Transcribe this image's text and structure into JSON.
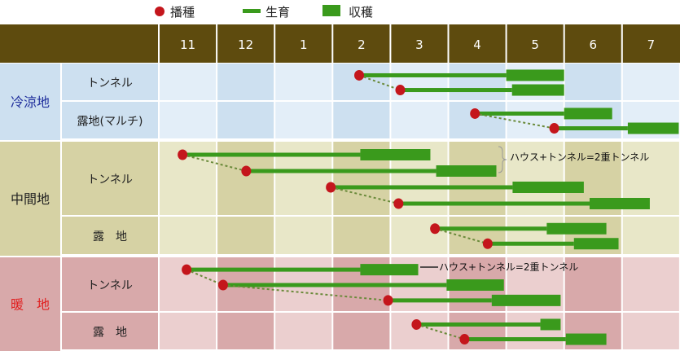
{
  "chart_data": {
    "type": "gantt",
    "legend": {
      "placement": "top-center",
      "items": [
        {
          "label": "播種",
          "shape": "dot"
        },
        {
          "label": "生育",
          "shape": "line"
        },
        {
          "label": "収穫",
          "shape": "block"
        }
      ]
    },
    "months": [
      "11",
      "12",
      "1",
      "2",
      "3",
      "4",
      "5",
      "6",
      "7"
    ],
    "colors": {
      "header": "#5e4b0e",
      "sow": "#c4161c",
      "growth": "#3a9a1c",
      "harvest": "#3a9a1c",
      "cold_light": "#e3eef8",
      "cold_dark": "#cde0f0",
      "cold_label": "#1f2e9c",
      "mid_light": "#e8e7c8",
      "mid_dark": "#d6d2a4",
      "mid_label": "#222222",
      "warm_light": "#ebcfcf",
      "warm_dark": "#d8a9aa",
      "warm_label": "#e02020"
    },
    "regions": [
      {
        "name": "冷涼地",
        "tone": "cold",
        "methods": [
          {
            "name": "トンネル",
            "groups": [
              [
                {
                  "sow": 2.46,
                  "harvest_start": 5.0,
                  "end": 6.0
                },
                {
                  "sow": 3.17,
                  "harvest_start": 5.1,
                  "end": 6.0
                }
              ]
            ]
          },
          {
            "name": "露地(マルチ)",
            "groups": [
              [
                {
                  "sow": 4.46,
                  "harvest_start": 6.0,
                  "end": 6.83
                },
                {
                  "sow": 5.83,
                  "harvest_start": 7.1,
                  "end": 7.98
                }
              ]
            ]
          }
        ]
      },
      {
        "name": "中間地",
        "tone": "mid",
        "methods": [
          {
            "name": "トンネル",
            "groups": [
              [
                {
                  "sow": 11.41,
                  "harvest_start": 2.48,
                  "end": 3.69
                },
                {
                  "sow": 12.51,
                  "harvest_start": 3.79,
                  "end": 4.83
                }
              ],
              [
                {
                  "sow": 1.97,
                  "harvest_start": 5.11,
                  "end": 6.34
                },
                {
                  "sow": 3.14,
                  "harvest_start": 6.44,
                  "end": 7.48
                }
              ]
            ]
          },
          {
            "name": "露　地",
            "groups": [
              [
                {
                  "sow": 3.77,
                  "harvest_start": 5.7,
                  "end": 6.73
                },
                {
                  "sow": 4.68,
                  "harvest_start": 6.17,
                  "end": 6.94
                }
              ]
            ]
          }
        ]
      },
      {
        "name": "暖　地",
        "tone": "warm",
        "methods": [
          {
            "name": "トンネル",
            "groups": [
              [
                {
                  "sow": 11.48,
                  "harvest_start": 2.48,
                  "end": 3.48
                },
                {
                  "sow": 12.11,
                  "harvest_start": 3.97,
                  "end": 4.96
                },
                {
                  "sow": 2.96,
                  "harvest_start": 4.75,
                  "end": 5.94
                }
              ]
            ]
          },
          {
            "name": "露　地",
            "groups": [
              [
                {
                  "sow": 3.45,
                  "harvest_start": 5.59,
                  "end": 5.94
                },
                {
                  "sow": 4.28,
                  "harvest_start": 6.03,
                  "end": 6.73
                }
              ]
            ]
          }
        ]
      }
    ],
    "annotations": [
      {
        "text": "ハウス+トンネル=2重トンネル",
        "region": 1,
        "style": "brace"
      },
      {
        "text": "ハウス+トンネル=2重トンネル",
        "region": 2,
        "style": "line"
      }
    ]
  }
}
